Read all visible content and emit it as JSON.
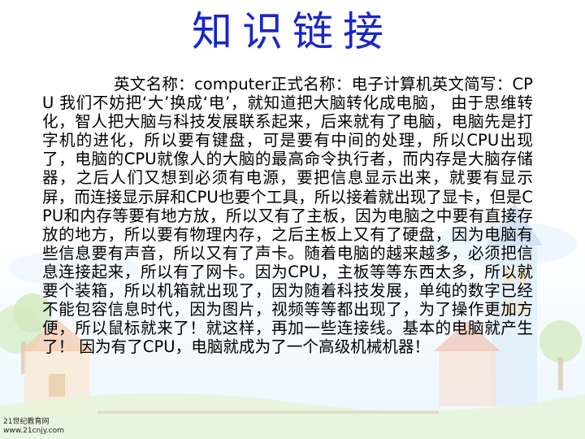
{
  "slide": {
    "title": "知识链接",
    "body": "英文名称：computer正式名称：电子计算机英文简写：CPU  我们不妨把‘大’换成‘电’，就知道把大脑转化成电脑，  由于思维转化，智人把大脑与科技发展联系起来，后来就有了电脑，电脑先是打字机的进化，所以要有键盘，可是要有中间的处理，所以CPU出现了，电脑的CPU就像人的大脑的最高命令执行者，而内存是大脑存储器，之后人们又想到必须有电源，要把信息显示出来，就要有显示屏，而连接显示屏和CPU也要个工具，所以接着就出现了显卡，但是CPU和内存等要有地方放，所以又有了主板，因为电脑之中要有直接存放的地方，所以要有物理内存，之后主板上又有了硬盘，因为电脑有些信息要有声音，所以又有了声卡。随着电脑的越来越多，必须把信息连接起来，所以有了网卡。因为CPU，主板等等东西太多，所以就要个装箱，所以机箱就出现了，因为随着科技发展，单纯的数字已经不能包容信息时代，因为图片，视频等等都出现了，为了操作更加方便，所以鼠标就来了！就这样，再加一些连接线。基本的电脑就产生了！  因为有了CPU，电脑就成为了一个高级机械机器！"
  },
  "watermark": {
    "line1": "21世纪教育网",
    "line2": "www.21cnjy.com"
  },
  "colors": {
    "title": "#1826c8",
    "text": "#000000"
  }
}
